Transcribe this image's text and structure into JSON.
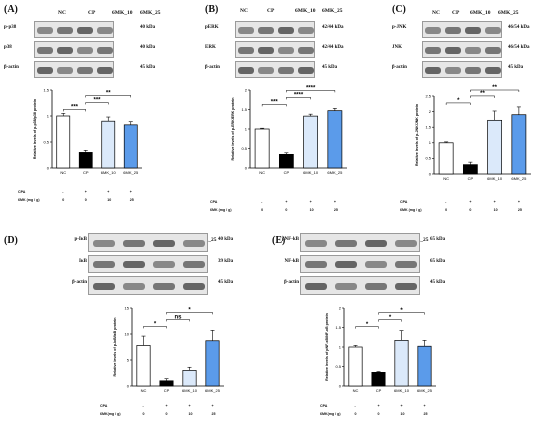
{
  "colors": {
    "nc": "#ffffff",
    "cp": "#000000",
    "mk10": "#dbe9fa",
    "mk25": "#5b9bea"
  },
  "panels": [
    {
      "label": "(A)",
      "lanes": [
        "NC",
        "CP",
        "6MK_10",
        "6MK_25"
      ],
      "blots": [
        {
          "name": "p-p38",
          "kda": "40 kDa"
        },
        {
          "name": "p38",
          "kda": "40 kDa"
        },
        {
          "name": "β-actin",
          "kda": "45 kDa"
        }
      ],
      "ylabel": "Relative levels of p-p38/p38 protein",
      "conditions": {
        "cpa_label": "CPA",
        "cpa_values": [
          "-",
          "+",
          "+",
          "+"
        ],
        "dose_label": "6MK (mg / g)",
        "dose_values": [
          "0",
          "0",
          "10",
          "25"
        ]
      },
      "chart_data": {
        "type": "bar",
        "categories": [
          "NC",
          "CP",
          "6MK_10",
          "6MK_25"
        ],
        "values": [
          1.0,
          0.3,
          0.9,
          0.83
        ],
        "errors": [
          0.05,
          0.04,
          0.08,
          0.06
        ],
        "ylim": [
          0,
          1.5
        ],
        "yticks": [
          0,
          0.5,
          1.0,
          1.5
        ],
        "significance": [
          "***",
          "***",
          "**"
        ]
      }
    },
    {
      "label": "(B)",
      "lanes": [
        "NC",
        "CP",
        "6MK_10",
        "6MK_25"
      ],
      "blots": [
        {
          "name": "pERK",
          "kda": "42/44 kDa"
        },
        {
          "name": "ERK",
          "kda": "42/44 kDa"
        },
        {
          "name": "β-actin",
          "kda": "45 kDa"
        }
      ],
      "ylabel": "Relative levels of p-ERK/ERK protein",
      "conditions": {
        "cpa_label": "CPA",
        "cpa_values": [
          "-",
          "+",
          "+",
          "+"
        ],
        "dose_label": "6MK (mg / g)",
        "dose_values": [
          "0",
          "0",
          "10",
          "25"
        ]
      },
      "chart_data": {
        "type": "bar",
        "categories": [
          "NC",
          "CP",
          "6MK_10",
          "6MK_25"
        ],
        "values": [
          1.0,
          0.35,
          1.33,
          1.47
        ],
        "errors": [
          0.02,
          0.04,
          0.05,
          0.06
        ],
        "ylim": [
          0,
          2.0
        ],
        "yticks": [
          0,
          0.5,
          1.0,
          1.5,
          2.0
        ],
        "significance": [
          "***",
          "****",
          "****"
        ]
      }
    },
    {
      "label": "(C)",
      "lanes": [
        "NC",
        "CP",
        "6MK_10",
        "6MK_25"
      ],
      "blots": [
        {
          "name": "p-JNK",
          "kda": "46/54 kDa"
        },
        {
          "name": "JNK",
          "kda": "46/54 kDa"
        },
        {
          "name": "β-actin",
          "kda": "45 kDa"
        }
      ],
      "ylabel": "Relative levels of p-JNK/JNK protein",
      "conditions": {
        "cpa_label": "CPA",
        "cpa_values": [
          "-",
          "+",
          "+",
          "+"
        ],
        "dose_label": "6MK (mg / g)",
        "dose_values": [
          "0",
          "0",
          "10",
          "25"
        ]
      },
      "chart_data": {
        "type": "bar",
        "categories": [
          "NC",
          "CP",
          "6MK_10",
          "6MK_25"
        ],
        "values": [
          1.0,
          0.3,
          1.72,
          1.9
        ],
        "errors": [
          0.03,
          0.08,
          0.3,
          0.25
        ],
        "ylim": [
          0,
          2.5
        ],
        "yticks": [
          0,
          0.5,
          1.0,
          1.5,
          2.0,
          2.5
        ],
        "significance": [
          "*",
          "**",
          "**"
        ]
      }
    },
    {
      "label": "(D)",
      "lanes": [
        "NC",
        "CP",
        "6MK_10",
        "6MK_25"
      ],
      "blots": [
        {
          "name": "p-IκB",
          "kda": "40 kDa"
        },
        {
          "name": "IκB",
          "kda": "39 kDa"
        },
        {
          "name": "β-actin",
          "kda": "45 kDa"
        }
      ],
      "ylabel": "Relative levels of p-IκB/IκB protein",
      "conditions": {
        "cpa_label": "CPA",
        "cpa_values": [
          "-",
          "+",
          "+",
          "+"
        ],
        "dose_label": "6MK(mg / g)",
        "dose_values": [
          "0",
          "0",
          "10",
          "25"
        ]
      },
      "chart_data": {
        "type": "bar",
        "categories": [
          "NC",
          "CP",
          "6MK_10",
          "6MK_25"
        ],
        "values": [
          7.8,
          1.0,
          3.0,
          8.7
        ],
        "errors": [
          1.8,
          0.4,
          0.6,
          2.0
        ],
        "ylim": [
          0,
          15
        ],
        "yticks": [
          0,
          5,
          10,
          15
        ],
        "significance": [
          "*",
          "ns",
          "*"
        ]
      }
    },
    {
      "label": "(E)",
      "lanes": [
        "NC",
        "CP",
        "6MK_10",
        "6MK_25"
      ],
      "blots": [
        {
          "name": "pNF-kB",
          "kda": "65 kDa"
        },
        {
          "name": "NF-kB",
          "kda": "65 kDa"
        },
        {
          "name": "β-actin",
          "kda": "45 kDa"
        }
      ],
      "ylabel": "Relative levels of pNF-κB/NF-κB protein",
      "conditions": {
        "cpa_label": "CPA",
        "cpa_values": [
          "-",
          "+",
          "+",
          "+"
        ],
        "dose_label": "6MK(mg / g)",
        "dose_values": [
          "0",
          "0",
          "10",
          "25"
        ]
      },
      "chart_data": {
        "type": "bar",
        "categories": [
          "NC",
          "CP",
          "6MK_10",
          "6MK_25"
        ],
        "values": [
          1.0,
          0.35,
          1.17,
          1.02
        ],
        "errors": [
          0.04,
          0.02,
          0.25,
          0.15
        ],
        "ylim": [
          0,
          2.0
        ],
        "yticks": [
          0,
          0.5,
          1.0,
          1.5,
          2.0
        ],
        "significance": [
          "*",
          "*",
          "*"
        ]
      }
    }
  ]
}
